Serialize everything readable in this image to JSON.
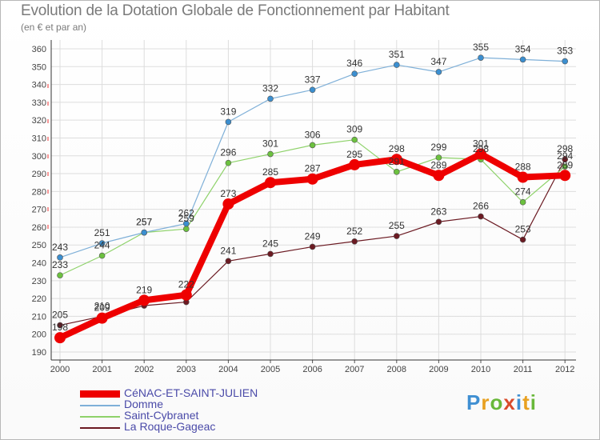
{
  "title": "Evolution de la Dotation Globale de Fonctionnement par Habitant",
  "subtitle": "(en € et par an)",
  "logo": "Proxiti",
  "chart_data": {
    "type": "line",
    "x": [
      2000,
      2001,
      2002,
      2003,
      2004,
      2005,
      2006,
      2007,
      2008,
      2009,
      2010,
      2011,
      2012
    ],
    "ylim": [
      190,
      360
    ],
    "yticks": [
      190,
      200,
      210,
      220,
      230,
      240,
      250,
      260,
      270,
      280,
      290,
      300,
      310,
      320,
      330,
      340,
      350,
      360
    ],
    "series": [
      {
        "name": "La Roque-Gageac",
        "color": "#6b1a22",
        "dot": "#6b1a22",
        "width": 1.2,
        "r": 3.5,
        "values": [
          205,
          210,
          216,
          218,
          241,
          245,
          249,
          252,
          255,
          263,
          266,
          253,
          298
        ],
        "labels": [
          "205",
          "210",
          "",
          "",
          "241",
          "245",
          "249",
          "252",
          "255",
          "263",
          "266",
          "253",
          "298"
        ]
      },
      {
        "name": "Saint-Cybranet",
        "color": "#8ed26a",
        "dot": "#6cc13f",
        "width": 1.2,
        "r": 3.5,
        "values": [
          233,
          244,
          257,
          259,
          296,
          301,
          306,
          309,
          291,
          299,
          298,
          274,
          294
        ],
        "labels": [
          "233",
          "244",
          "257",
          "259",
          "296",
          "301",
          "306",
          "309",
          "291",
          "299",
          "298",
          "274",
          "294"
        ]
      },
      {
        "name": "Domme",
        "color": "#7fb0d8",
        "dot": "#3b8fd0",
        "width": 1.2,
        "r": 3.5,
        "values": [
          243,
          251,
          257,
          262,
          319,
          332,
          337,
          346,
          351,
          347,
          355,
          354,
          353
        ],
        "labels": [
          "243",
          "251",
          "257",
          "262",
          "319",
          "332",
          "337",
          "346",
          "351",
          "347",
          "355",
          "354",
          "353"
        ]
      },
      {
        "name": "CéNAC-ET-SAINT-JULIEN",
        "color": "#ee0000",
        "dot": "#ee0000",
        "width": 8,
        "r": 7,
        "values": [
          198,
          209,
          219,
          222,
          273,
          285,
          287,
          295,
          298,
          289,
          301,
          288,
          289
        ],
        "labels": [
          "198",
          "209",
          "219",
          "222",
          "273",
          "285",
          "287",
          "295",
          "298",
          "289",
          "301",
          "288",
          "289"
        ]
      }
    ]
  },
  "legend": [
    {
      "name": "CéNAC-ET-SAINT-JULIEN",
      "color": "#ee0000",
      "thickness": "thick"
    },
    {
      "name": "Domme",
      "color": "#7fb0d8",
      "thickness": "thin"
    },
    {
      "name": "Saint-Cybranet",
      "color": "#8ed26a",
      "thickness": "thin"
    },
    {
      "name": "La Roque-Gageac",
      "color": "#6b1a22",
      "thickness": "thin"
    }
  ]
}
